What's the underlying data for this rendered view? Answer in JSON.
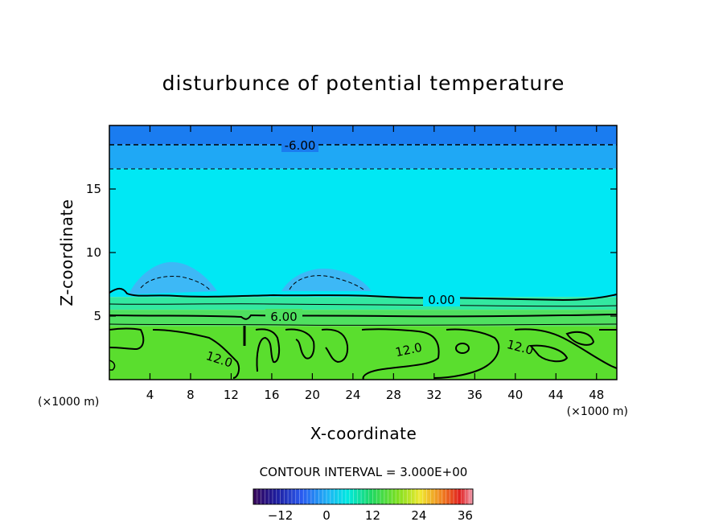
{
  "chart_data": {
    "type": "heatmap",
    "title": "disturbunce of potential temperature",
    "xlabel": "X-coordinate",
    "ylabel": "Z-coordinate",
    "x_unit": "(×1000 m)",
    "y_unit": "(×1000 m)",
    "xlim": [
      0,
      50
    ],
    "ylim": [
      0,
      20
    ],
    "x_ticks": [
      4,
      8,
      12,
      16,
      20,
      24,
      28,
      32,
      36,
      40,
      44,
      48
    ],
    "y_ticks": [
      5,
      10,
      15
    ],
    "contour_interval": "CONTOUR INTERVAL = 3.000E+00",
    "contour_labels": [
      "-6.00",
      "0.00",
      "6.00",
      "12.0",
      "12.0",
      "12.0"
    ],
    "colorbar": {
      "min": -19,
      "max": 38,
      "ticks": [
        "−12",
        "0",
        "12",
        "24",
        "36"
      ],
      "tick_values": [
        -12,
        0,
        12,
        24,
        36
      ]
    },
    "bands": [
      {
        "z_from": 18.5,
        "z_to": 20,
        "value": -9
      },
      {
        "z_from": 16.6,
        "z_to": 18.5,
        "value": -5
      },
      {
        "z_from": 6.5,
        "z_to": 16.6,
        "value": -2
      },
      {
        "z_from": 5.5,
        "z_to": 6.5,
        "value": 3
      },
      {
        "z_from": 4.2,
        "z_to": 5.5,
        "value": 7
      },
      {
        "z_from": 0,
        "z_to": 4.2,
        "value": 12
      }
    ],
    "colors": {
      "band_top": "#1a7cf0",
      "band_upper": "#1fa8f5",
      "band_mid": "#00e8f4",
      "band_low1": "#33e8a0",
      "band_low2": "#4fe060",
      "band_bottom": "#5ade2e",
      "blob": "#3db8f6"
    }
  }
}
